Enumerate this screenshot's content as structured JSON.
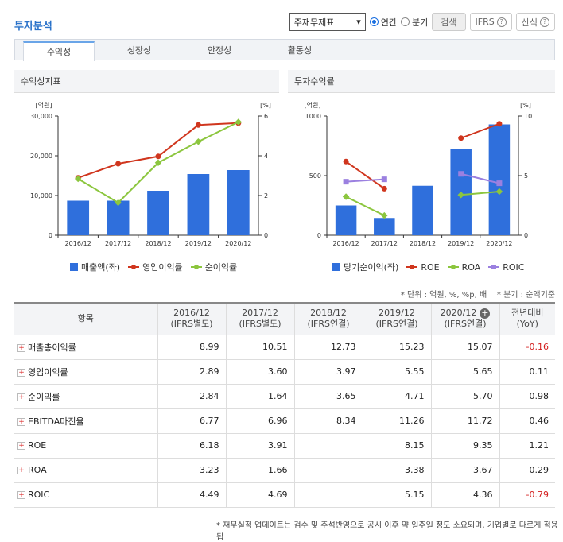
{
  "page_title": "투자분석",
  "controls": {
    "select_value": "주재무제표",
    "radio_annual": "연간",
    "radio_quarter": "분기",
    "search_button": "검색",
    "ifrs_button": "IFRS",
    "formula_button": "산식"
  },
  "tabs": [
    "수익성",
    "성장성",
    "안정성",
    "활동성"
  ],
  "panels": {
    "left_title": "수익성지표",
    "right_title": "투자수익률"
  },
  "colors": {
    "bar": "#2f6fdc",
    "red": "#d0361e",
    "green": "#8cc63e",
    "purple": "#9b80e0"
  },
  "chart_data": [
    {
      "type": "bar",
      "categories": [
        "2016/12",
        "2017/12",
        "2018/12",
        "2019/12",
        "2020/12"
      ],
      "left_unit": "[억원]",
      "right_unit": "[%]",
      "ylim": [
        0,
        30000
      ],
      "y2lim": [
        0,
        6
      ],
      "y_ticks": [
        "0",
        "10,000",
        "20,000",
        "30,000"
      ],
      "y2_ticks": [
        "0",
        "2",
        "4",
        "6"
      ],
      "series": [
        {
          "name": "매출액(좌)",
          "type": "bar",
          "axis": "left",
          "values": [
            8700,
            8700,
            11200,
            15400,
            16400
          ]
        },
        {
          "name": "영업이익률",
          "type": "line",
          "axis": "right",
          "marker": "circle",
          "values": [
            2.89,
            3.6,
            3.97,
            5.55,
            5.65
          ]
        },
        {
          "name": "순이익률",
          "type": "line",
          "axis": "right",
          "marker": "diamond",
          "values": [
            2.84,
            1.64,
            3.65,
            4.71,
            5.7
          ]
        }
      ]
    },
    {
      "type": "bar",
      "categories": [
        "2016/12",
        "2017/12",
        "2018/12",
        "2019/12",
        "2020/12"
      ],
      "left_unit": "[억원]",
      "right_unit": "[%]",
      "ylim": [
        0,
        1000
      ],
      "y2lim": [
        0,
        10
      ],
      "y_ticks": [
        "0",
        "500",
        "1000"
      ],
      "y2_ticks": [
        "0",
        "5",
        "10"
      ],
      "series": [
        {
          "name": "당기순이익(좌)",
          "type": "bar",
          "axis": "left",
          "values": [
            250,
            145,
            415,
            720,
            930
          ]
        },
        {
          "name": "ROE",
          "type": "line",
          "axis": "right",
          "marker": "circle",
          "values": [
            6.18,
            3.91,
            null,
            8.15,
            9.35
          ]
        },
        {
          "name": "ROA",
          "type": "line",
          "axis": "right",
          "marker": "diamond",
          "values": [
            3.23,
            1.66,
            null,
            3.38,
            3.67
          ]
        },
        {
          "name": "ROIC",
          "type": "line",
          "axis": "right",
          "marker": "square",
          "values": [
            4.49,
            4.69,
            null,
            5.15,
            4.36
          ]
        }
      ]
    }
  ],
  "notes": {
    "unit": "* 단위 : 억원, %, %p, 배",
    "quarter": "* 분기 : 순액기준"
  },
  "table": {
    "header_item": "항목",
    "columns": [
      {
        "year": "2016/12",
        "basis": "(IFRS별도)"
      },
      {
        "year": "2017/12",
        "basis": "(IFRS별도)"
      },
      {
        "year": "2018/12",
        "basis": "(IFRS연결)"
      },
      {
        "year": "2019/12",
        "basis": "(IFRS연결)"
      },
      {
        "year": "2020/12",
        "basis": "(IFRS연결)"
      }
    ],
    "yoy_header": "전년대비",
    "yoy_sub": "(YoY)",
    "rows": [
      {
        "name": "매출총이익률",
        "values": [
          "8.99",
          "10.51",
          "12.73",
          "15.23",
          "15.07"
        ],
        "yoy": "-0.16"
      },
      {
        "name": "영업이익률",
        "values": [
          "2.89",
          "3.60",
          "3.97",
          "5.55",
          "5.65"
        ],
        "yoy": "0.11"
      },
      {
        "name": "순이익률",
        "values": [
          "2.84",
          "1.64",
          "3.65",
          "4.71",
          "5.70"
        ],
        "yoy": "0.98"
      },
      {
        "name": "EBITDA마진율",
        "values": [
          "6.77",
          "6.96",
          "8.34",
          "11.26",
          "11.72"
        ],
        "yoy": "0.46"
      },
      {
        "name": "ROE",
        "values": [
          "6.18",
          "3.91",
          "",
          "8.15",
          "9.35"
        ],
        "yoy": "1.21"
      },
      {
        "name": "ROA",
        "values": [
          "3.23",
          "1.66",
          "",
          "3.38",
          "3.67"
        ],
        "yoy": "0.29"
      },
      {
        "name": "ROIC",
        "values": [
          "4.49",
          "4.69",
          "",
          "5.15",
          "4.36"
        ],
        "yoy": "-0.79"
      }
    ]
  },
  "footer": "* 재무실적 업데이트는 검수 및 주석반영으로 공시 이후 약 일주일 정도 소요되며, 기업별로 다르게 적용됩"
}
